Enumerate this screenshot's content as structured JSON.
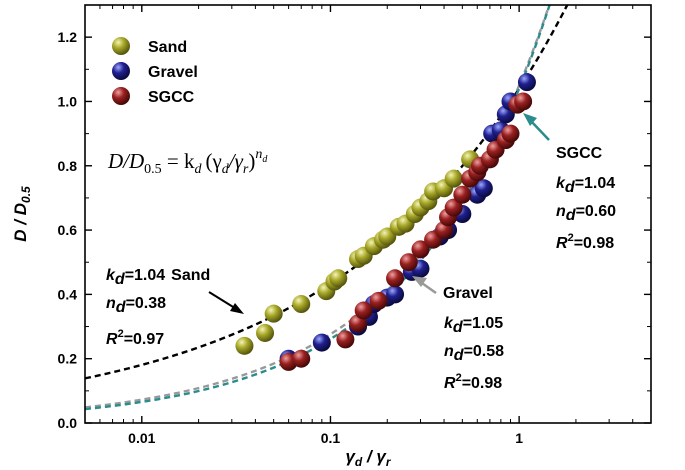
{
  "chart_data": {
    "type": "scatter",
    "xscale": "log",
    "xlim": [
      0.005,
      5
    ],
    "ylim": [
      0.0,
      1.3
    ],
    "xlabel_main": "γ",
    "xlabel_sub1": "d",
    "xlabel_sep": " / ",
    "xlabel_main2": "γ",
    "xlabel_sub2": "r",
    "ylabel_main": "D",
    "ylabel_sep": " / ",
    "ylabel_main2": "D",
    "ylabel_sub": "0.5",
    "x_ticks": [
      0.01,
      0.1,
      1
    ],
    "x_tick_labels": [
      "0.01",
      "0.1",
      "1"
    ],
    "y_ticks": [
      0.0,
      0.2,
      0.4,
      0.6,
      0.8,
      1.0,
      1.2
    ],
    "y_tick_labels": [
      "0.0",
      "0.2",
      "0.4",
      "0.6",
      "0.8",
      "1.0",
      "1.2"
    ],
    "equation": {
      "lhs": "D/D",
      "lhs_sub": "0.5",
      "eq": " = k",
      "k_sub": "d",
      "paren_open": "(γ",
      "g1_sub": "d",
      "slash": "/γ",
      "g2_sub": "r",
      "paren_close": ")",
      "exp": "n",
      "exp_sub": "d"
    },
    "legend": [
      {
        "name": "Sand",
        "color": "#a8a828"
      },
      {
        "name": "Gravel",
        "color": "#202090"
      },
      {
        "name": "SGCC",
        "color": "#9a2020"
      }
    ],
    "series": [
      {
        "name": "Sand",
        "color": "#a8a828",
        "points": [
          [
            0.035,
            0.24
          ],
          [
            0.045,
            0.28
          ],
          [
            0.05,
            0.34
          ],
          [
            0.07,
            0.37
          ],
          [
            0.095,
            0.41
          ],
          [
            0.105,
            0.44
          ],
          [
            0.11,
            0.45
          ],
          [
            0.14,
            0.51
          ],
          [
            0.15,
            0.52
          ],
          [
            0.17,
            0.55
          ],
          [
            0.19,
            0.57
          ],
          [
            0.2,
            0.58
          ],
          [
            0.23,
            0.61
          ],
          [
            0.25,
            0.62
          ],
          [
            0.28,
            0.65
          ],
          [
            0.3,
            0.67
          ],
          [
            0.33,
            0.69
          ],
          [
            0.35,
            0.72
          ],
          [
            0.4,
            0.73
          ],
          [
            0.45,
            0.76
          ],
          [
            0.55,
            0.82
          ]
        ]
      },
      {
        "name": "Gravel",
        "color": "#202090",
        "points": [
          [
            0.06,
            0.2
          ],
          [
            0.09,
            0.25
          ],
          [
            0.14,
            0.3
          ],
          [
            0.16,
            0.33
          ],
          [
            0.17,
            0.37
          ],
          [
            0.2,
            0.39
          ],
          [
            0.22,
            0.4
          ],
          [
            0.27,
            0.47
          ],
          [
            0.3,
            0.48
          ],
          [
            0.38,
            0.58
          ],
          [
            0.42,
            0.6
          ],
          [
            0.5,
            0.65
          ],
          [
            0.6,
            0.71
          ],
          [
            0.65,
            0.73
          ],
          [
            0.72,
            0.9
          ],
          [
            0.8,
            0.91
          ],
          [
            0.85,
            0.96
          ],
          [
            0.9,
            1.0
          ],
          [
            1.1,
            1.06
          ]
        ]
      },
      {
        "name": "SGCC",
        "color": "#9a2020",
        "points": [
          [
            0.06,
            0.19
          ],
          [
            0.07,
            0.2
          ],
          [
            0.12,
            0.26
          ],
          [
            0.14,
            0.31
          ],
          [
            0.15,
            0.35
          ],
          [
            0.18,
            0.38
          ],
          [
            0.22,
            0.45
          ],
          [
            0.26,
            0.5
          ],
          [
            0.3,
            0.54
          ],
          [
            0.35,
            0.57
          ],
          [
            0.4,
            0.6
          ],
          [
            0.42,
            0.64
          ],
          [
            0.45,
            0.67
          ],
          [
            0.5,
            0.71
          ],
          [
            0.55,
            0.76
          ],
          [
            0.6,
            0.78
          ],
          [
            0.62,
            0.8
          ],
          [
            0.7,
            0.82
          ],
          [
            0.75,
            0.85
          ],
          [
            0.85,
            0.88
          ],
          [
            0.9,
            0.9
          ],
          [
            0.98,
            0.99
          ],
          [
            1.05,
            1.0
          ]
        ]
      }
    ],
    "fits": [
      {
        "name": "Sand",
        "k": 1.04,
        "n": 0.38,
        "color": "#000000"
      },
      {
        "name": "Gravel",
        "k": 1.05,
        "n": 0.58,
        "color": "#999999"
      },
      {
        "name": "SGCC",
        "k": 1.04,
        "n": 0.6,
        "color": "#2a8c8c"
      }
    ],
    "annotations": {
      "sand": {
        "label": "Sand",
        "k": "k",
        "k_sub": "d",
        "k_val": "=1.04",
        "n": "n",
        "n_sub": "d",
        "n_val": "=0.38",
        "r": "R",
        "r_sup": "2",
        "r_val": "=0.97"
      },
      "gravel": {
        "label": "Gravel",
        "k": "k",
        "k_sub": "d",
        "k_val": "=1.05",
        "n": "n",
        "n_sub": "d",
        "n_val": "=0.58",
        "r": "R",
        "r_sup": "2",
        "r_val": "=0.98"
      },
      "sgcc": {
        "label": "SGCC",
        "k": "k",
        "k_sub": "d",
        "k_val": "=1.04",
        "n": "n",
        "n_sub": "d",
        "n_val": "=0.60",
        "r": "R",
        "r_sup": "2",
        "r_val": "=0.98"
      }
    }
  }
}
